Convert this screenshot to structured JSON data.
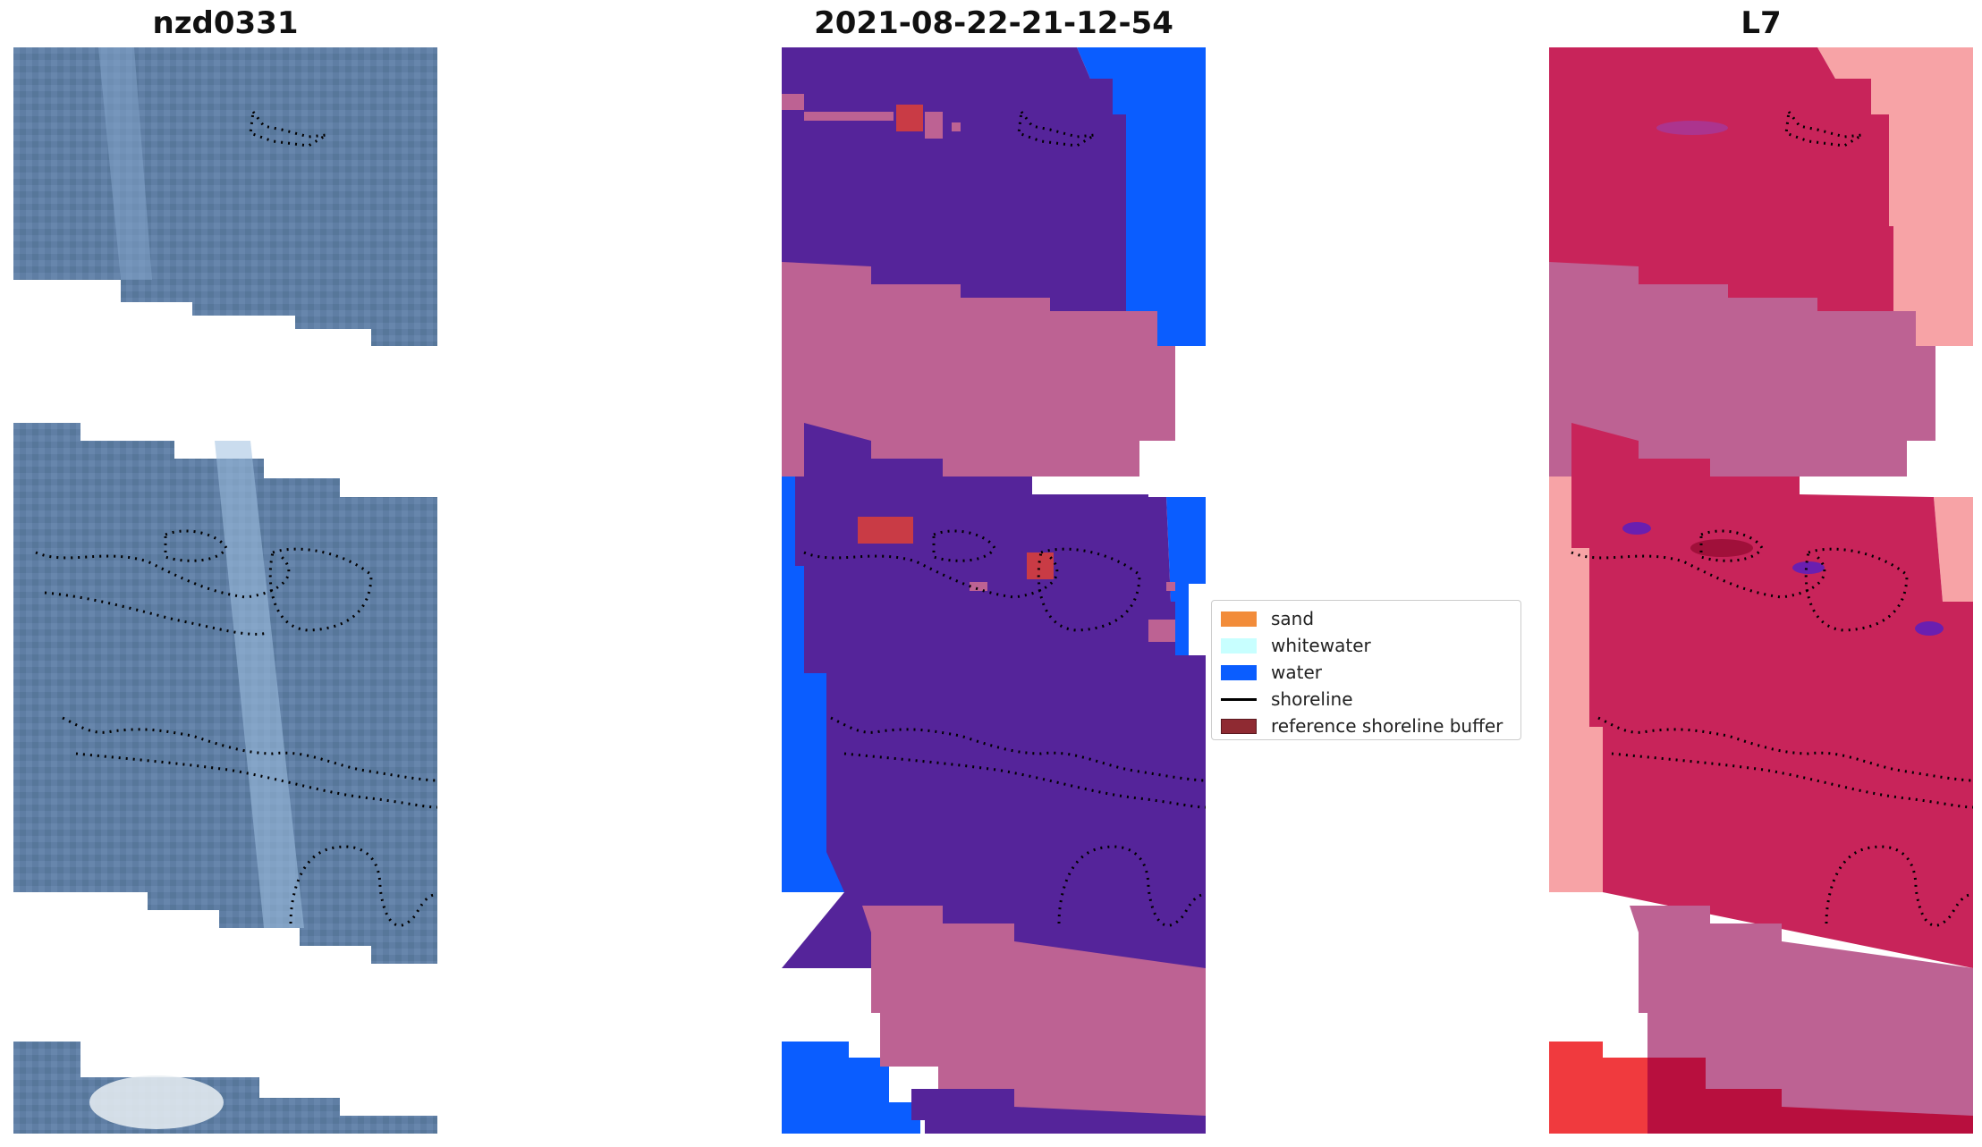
{
  "panels": [
    {
      "title": "nzd0331"
    },
    {
      "title": "2021-08-22-21-12-54"
    },
    {
      "title": "L7"
    }
  ],
  "legend": {
    "items": [
      {
        "label": "sand",
        "color": "#f28c3a",
        "kind": "patch"
      },
      {
        "label": "whitewater",
        "color": "#c8ffff",
        "kind": "patch"
      },
      {
        "label": "water",
        "color": "#0a5dff",
        "kind": "patch"
      },
      {
        "label": "shoreline",
        "color": "#000000",
        "kind": "line"
      },
      {
        "label": "reference shoreline buffer",
        "color": "#8f2a32",
        "kind": "patch"
      }
    ]
  },
  "colors": {
    "land": "#55249a",
    "cloud_mask": "#bd6293",
    "water": "#0a5dff",
    "buffer_highlight": "#c93b45",
    "rgb_base": "#5f7ea4",
    "index_base": "#c8245a",
    "index_light": "#f7a3a6"
  }
}
